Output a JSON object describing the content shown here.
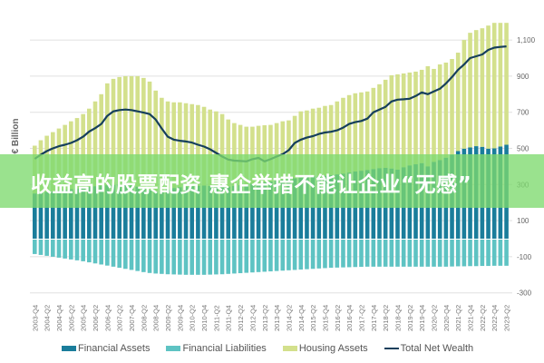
{
  "banner": {
    "text": "收益高的股票配资 惠企举措不能让企业“无感”"
  },
  "colors": {
    "financial_assets": "#1a7d9b",
    "financial_liabilities": "#5ec3c3",
    "housing_assets": "#d3e08c",
    "total_net_wealth": "#163f5c",
    "grid": "#e0e0e0",
    "banner": "#7dda6e"
  },
  "chart_data": {
    "type": "bar",
    "stacked": true,
    "title": "",
    "xlabel": "",
    "ylabel": "€ Billion",
    "ylim": [
      -300,
      1200
    ],
    "yticks": [
      -300,
      -100,
      100,
      300,
      500,
      700,
      900,
      1100
    ],
    "ytick_labels": [
      "-300",
      "-100",
      "100",
      "300",
      "500",
      "700",
      "900",
      "1,100"
    ],
    "grid": true,
    "legend_position": "bottom",
    "categories": [
      "2003-Q4",
      "2004-Q1",
      "2004-Q2",
      "2004-Q3",
      "2004-Q4",
      "2005-Q1",
      "2005-Q2",
      "2005-Q3",
      "2005-Q4",
      "2006-Q1",
      "2006-Q2",
      "2006-Q3",
      "2006-Q4",
      "2007-Q1",
      "2007-Q2",
      "2007-Q3",
      "2007-Q4",
      "2008-Q1",
      "2008-Q2",
      "2008-Q3",
      "2008-Q4",
      "2009-Q1",
      "2009-Q2",
      "2009-Q3",
      "2009-Q4",
      "2010-Q1",
      "2010-Q2",
      "2010-Q3",
      "2010-Q4",
      "2011-Q1",
      "2011-Q2",
      "2011-Q3",
      "2011-Q4",
      "2012-Q1",
      "2012-Q2",
      "2012-Q3",
      "2012-Q4",
      "2013-Q1",
      "2013-Q2",
      "2013-Q3",
      "2013-Q4",
      "2014-Q1",
      "2014-Q2",
      "2014-Q3",
      "2014-Q4",
      "2015-Q1",
      "2015-Q2",
      "2015-Q3",
      "2015-Q4",
      "2016-Q1",
      "2016-Q2",
      "2016-Q3",
      "2016-Q4",
      "2017-Q1",
      "2017-Q2",
      "2017-Q3",
      "2017-Q4",
      "2018-Q1",
      "2018-Q2",
      "2018-Q3",
      "2018-Q4",
      "2019-Q1",
      "2019-Q2",
      "2019-Q3",
      "2019-Q4",
      "2020-Q1",
      "2020-Q2",
      "2020-Q3",
      "2020-Q4",
      "2021-Q1",
      "2021-Q2",
      "2021-Q3",
      "2021-Q4",
      "2022-Q1",
      "2022-Q2",
      "2022-Q3",
      "2022-Q4",
      "2023-Q1",
      "2023-Q2"
    ],
    "xtick_labels": [
      "2003-Q4",
      "2004-Q2",
      "2004-Q4",
      "2005-Q2",
      "2005-Q4",
      "2006-Q2",
      "2006-Q4",
      "2007-Q2",
      "2007-Q4",
      "2008-Q2",
      "2008-Q4",
      "2009-Q2",
      "2009-Q4",
      "2010-Q2",
      "2010-Q4",
      "2011-Q2",
      "2011-Q4",
      "2012-Q2",
      "2012-Q4",
      "2013-Q2",
      "2013-Q4",
      "2014-Q2",
      "2014-Q4",
      "2015-Q2",
      "2015-Q4",
      "2016-Q2",
      "2016-Q4",
      "2017-Q2",
      "2017-Q4",
      "2018-Q2",
      "2018-Q4",
      "2019-Q2",
      "2019-Q4",
      "2020-Q2",
      "2020-Q4",
      "2021-Q2",
      "2021-Q4",
      "2022-Q2",
      "2022-Q4",
      "2023-Q2"
    ],
    "series": [
      {
        "name": "Financial Assets",
        "kind": "bar",
        "values": [
          250,
          255,
          258,
          262,
          266,
          270,
          274,
          278,
          282,
          286,
          290,
          293,
          296,
          298,
          300,
          298,
          295,
          288,
          280,
          270,
          262,
          265,
          272,
          280,
          285,
          288,
          290,
          292,
          294,
          292,
          288,
          285,
          288,
          292,
          296,
          300,
          304,
          308,
          312,
          316,
          320,
          325,
          330,
          334,
          338,
          343,
          346,
          344,
          348,
          352,
          356,
          360,
          366,
          372,
          376,
          380,
          385,
          390,
          392,
          388,
          382,
          395,
          405,
          412,
          418,
          400,
          425,
          435,
          448,
          465,
          485,
          498,
          505,
          512,
          508,
          498,
          500,
          510,
          520
        ]
      },
      {
        "name": "Financial Liabilities",
        "kind": "bar",
        "values": [
          -80,
          -85,
          -90,
          -95,
          -100,
          -105,
          -110,
          -115,
          -120,
          -126,
          -132,
          -138,
          -144,
          -150,
          -156,
          -162,
          -168,
          -174,
          -180,
          -185,
          -188,
          -190,
          -192,
          -193,
          -194,
          -195,
          -195,
          -195,
          -195,
          -194,
          -193,
          -192,
          -190,
          -188,
          -186,
          -184,
          -182,
          -180,
          -178,
          -176,
          -174,
          -172,
          -170,
          -168,
          -166,
          -164,
          -162,
          -160,
          -158,
          -156,
          -155,
          -154,
          -153,
          -152,
          -151,
          -150,
          -150,
          -150,
          -150,
          -150,
          -150,
          -150,
          -150,
          -150,
          -150,
          -150,
          -150,
          -150,
          -150,
          -149,
          -148,
          -148,
          -147,
          -147,
          -146,
          -146,
          -145,
          -145,
          -145
        ]
      },
      {
        "name": "Housing Assets",
        "kind": "bar",
        "values": [
          265,
          290,
          312,
          328,
          344,
          360,
          376,
          390,
          408,
          434,
          470,
          507,
          564,
          587,
          595,
          602,
          605,
          612,
          610,
          600,
          558,
          515,
          488,
          475,
          470,
          462,
          455,
          448,
          436,
          423,
          417,
          405,
          372,
          348,
          334,
          320,
          316,
          317,
          316,
          314,
          320,
          325,
          325,
          346,
          367,
          367,
          374,
          381,
          387,
          388,
          404,
          420,
          429,
          433,
          434,
          435,
          450,
          465,
          488,
          517,
          528,
          520,
          515,
          513,
          517,
          555,
          515,
          530,
          527,
          530,
          545,
          602,
          635,
          643,
          657,
          682,
          695,
          685,
          675
        ]
      },
      {
        "name": "Total Net Wealth",
        "kind": "line",
        "values": [
          442,
          465,
          485,
          500,
          512,
          520,
          530,
          545,
          565,
          593,
          612,
          635,
          680,
          705,
          712,
          715,
          712,
          705,
          698,
          690,
          660,
          610,
          565,
          548,
          542,
          538,
          532,
          520,
          510,
          495,
          475,
          455,
          438,
          432,
          430,
          428,
          440,
          447,
          428,
          440,
          455,
          468,
          490,
          530,
          548,
          560,
          568,
          580,
          588,
          592,
          600,
          615,
          635,
          645,
          652,
          665,
          700,
          715,
          730,
          760,
          770,
          772,
          775,
          790,
          810,
          800,
          815,
          830,
          860,
          895,
          935,
          965,
          1000,
          1010,
          1020,
          1045,
          1058,
          1062,
          1065
        ]
      }
    ]
  }
}
